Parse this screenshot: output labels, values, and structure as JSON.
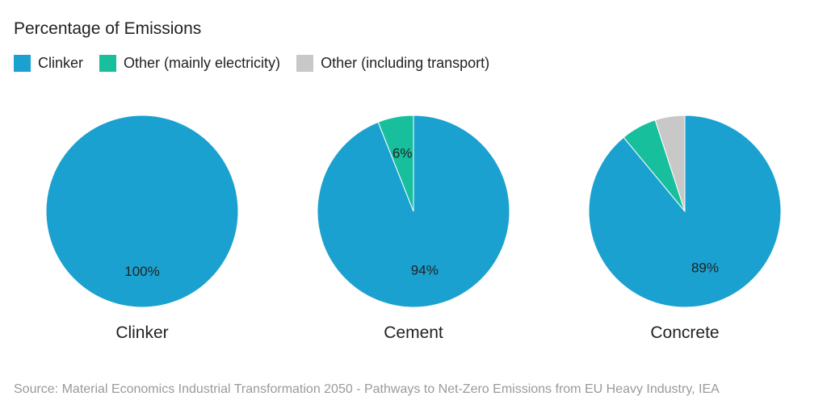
{
  "chart_data": {
    "type": "pie",
    "title": "Percentage of Emissions",
    "legend": [
      {
        "name": "Clinker",
        "color": "#1ba1cf"
      },
      {
        "name": "Other (mainly electricity)",
        "color": "#17bf9c"
      },
      {
        "name": "Other (including transport)",
        "color": "#c8c8c8"
      }
    ],
    "legend_position": "top-left",
    "pies": [
      {
        "name": "Clinker",
        "slices": [
          {
            "series": "Clinker",
            "value": 100,
            "label": "100%"
          }
        ]
      },
      {
        "name": "Cement",
        "slices": [
          {
            "series": "Clinker",
            "value": 94,
            "label": "94%"
          },
          {
            "series": "Other (mainly electricity)",
            "value": 6,
            "label": "6%"
          }
        ]
      },
      {
        "name": "Concrete",
        "slices": [
          {
            "series": "Clinker",
            "value": 89,
            "label": "89%"
          },
          {
            "series": "Other (mainly electricity)",
            "value": 6,
            "label": ""
          },
          {
            "series": "Other (including transport)",
            "value": 5,
            "label": ""
          }
        ]
      }
    ],
    "source": "Source: Material Economics Industrial Transformation 2050 - Pathways to Net-Zero Emissions from EU Heavy Industry, IEA"
  }
}
